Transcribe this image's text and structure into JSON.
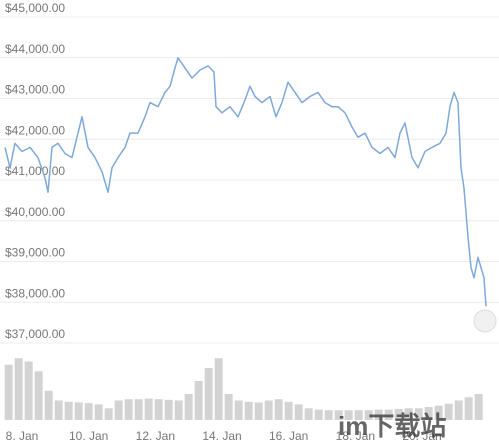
{
  "chart_data": [
    {
      "type": "line",
      "color": "#7fa9da",
      "grid": true,
      "ylim": [
        37000,
        45000
      ],
      "yticks": [
        {
          "value": 45000,
          "label": "$45,000.00"
        },
        {
          "value": 44000,
          "label": "$44,000.00"
        },
        {
          "value": 43000,
          "label": "$43,000.00"
        },
        {
          "value": 42000,
          "label": "$42,000.00"
        },
        {
          "value": 41000,
          "label": "$41,000.00"
        },
        {
          "value": 40000,
          "label": "$40,000.00"
        },
        {
          "value": 39000,
          "label": "$39,000.00"
        },
        {
          "value": 38000,
          "label": "$38,000.00"
        },
        {
          "value": 37000,
          "label": "$37,000.00"
        }
      ],
      "xlim": [
        7.49,
        21.95
      ],
      "xticks": [
        {
          "value": 8,
          "label": "8. Jan"
        },
        {
          "value": 10,
          "label": "10. Jan"
        },
        {
          "value": 12,
          "label": "12. Jan"
        },
        {
          "value": 14,
          "label": "14. Jan"
        },
        {
          "value": 16,
          "label": "16. Jan"
        },
        {
          "value": 18,
          "label": "18. Jan"
        },
        {
          "value": 20,
          "label": "20. Jan"
        }
      ],
      "x": [
        7.49,
        7.64,
        7.79,
        8.0,
        8.24,
        8.48,
        8.69,
        8.78,
        8.9,
        9.08,
        9.29,
        9.5,
        9.68,
        9.8,
        9.98,
        10.19,
        10.4,
        10.58,
        10.7,
        10.88,
        11.09,
        11.24,
        11.48,
        11.69,
        11.84,
        12.08,
        12.29,
        12.44,
        12.59,
        12.68,
        12.89,
        13.1,
        13.34,
        13.58,
        13.76,
        13.82,
        14.0,
        14.24,
        14.48,
        14.66,
        14.84,
        14.99,
        15.2,
        15.44,
        15.62,
        15.8,
        15.98,
        16.19,
        16.4,
        16.64,
        16.88,
        17.09,
        17.3,
        17.48,
        17.69,
        17.9,
        18.08,
        18.29,
        18.5,
        18.74,
        18.98,
        19.19,
        19.34,
        19.49,
        19.7,
        19.88,
        20.09,
        20.3,
        20.54,
        20.72,
        20.84,
        20.96,
        21.08,
        21.17,
        21.26,
        21.38,
        21.47,
        21.56,
        21.68,
        21.77,
        21.86,
        21.92
      ],
      "values": [
        41800,
        41300,
        41900,
        41700,
        41800,
        41550,
        41050,
        40700,
        41800,
        41900,
        41650,
        41550,
        42150,
        42550,
        41800,
        41550,
        41200,
        40700,
        41300,
        41550,
        41800,
        42150,
        42150,
        42550,
        42900,
        42800,
        43150,
        43300,
        43750,
        44000,
        43750,
        43500,
        43700,
        43800,
        43650,
        42800,
        42650,
        42800,
        42550,
        42900,
        43300,
        43050,
        42900,
        43050,
        42550,
        42900,
        43400,
        43150,
        42900,
        43050,
        43150,
        42900,
        42800,
        42800,
        42650,
        42300,
        42050,
        42150,
        41800,
        41650,
        41800,
        41550,
        42150,
        42400,
        41550,
        41300,
        41700,
        41800,
        41900,
        42150,
        42800,
        43150,
        42900,
        41300,
        40800,
        39600,
        38850,
        38600,
        39100,
        38850,
        38600,
        37900
      ]
    },
    {
      "type": "bar",
      "color": "#d3d3d3",
      "ylim": [
        0,
        100
      ],
      "x": [
        7.6,
        7.9,
        8.2,
        8.5,
        8.8,
        9.1,
        9.4,
        9.7,
        10.0,
        10.3,
        10.6,
        10.9,
        11.2,
        11.5,
        11.8,
        12.1,
        12.4,
        12.7,
        13.0,
        13.3,
        13.6,
        13.9,
        14.2,
        14.5,
        14.8,
        15.1,
        15.4,
        15.7,
        16.0,
        16.3,
        16.6,
        16.9,
        17.2,
        17.5,
        17.8,
        18.1,
        18.4,
        18.7,
        19.0,
        19.3,
        19.6,
        19.9,
        20.2,
        20.5,
        20.8,
        21.1,
        21.4,
        21.7
      ],
      "values": [
        85,
        95,
        90,
        75,
        45,
        30,
        28,
        27,
        26,
        24,
        18,
        30,
        32,
        32,
        33,
        32,
        31,
        30,
        40,
        60,
        80,
        95,
        40,
        30,
        28,
        27,
        30,
        32,
        28,
        24,
        18,
        16,
        15,
        15,
        15,
        15,
        15,
        16,
        16,
        17,
        18,
        18,
        20,
        22,
        25,
        30,
        35,
        40
      ]
    }
  ],
  "watermark": "im下载站"
}
